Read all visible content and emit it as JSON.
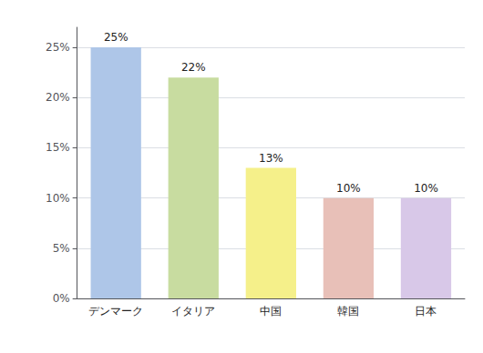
{
  "chart_data": {
    "type": "bar",
    "categories": [
      "デンマーク",
      "イタリア",
      "中国",
      "韓国",
      "日本"
    ],
    "values": [
      25,
      22,
      13,
      10,
      10
    ],
    "value_labels": [
      "25%",
      "22%",
      "13%",
      "10%",
      "10%"
    ],
    "colors": [
      "#aec6e8",
      "#c8dca0",
      "#f5f08a",
      "#e8c0b8",
      "#d8c8e8"
    ],
    "ylim": [
      0,
      27
    ],
    "yticks": [
      {
        "value": 0,
        "label": "0%"
      },
      {
        "value": 5,
        "label": "5%"
      },
      {
        "value": 10,
        "label": "10%"
      },
      {
        "value": 15,
        "label": "15%"
      },
      {
        "value": 20,
        "label": "20%"
      },
      {
        "value": 25,
        "label": "25%"
      }
    ],
    "grid": true,
    "data_labels": true
  }
}
